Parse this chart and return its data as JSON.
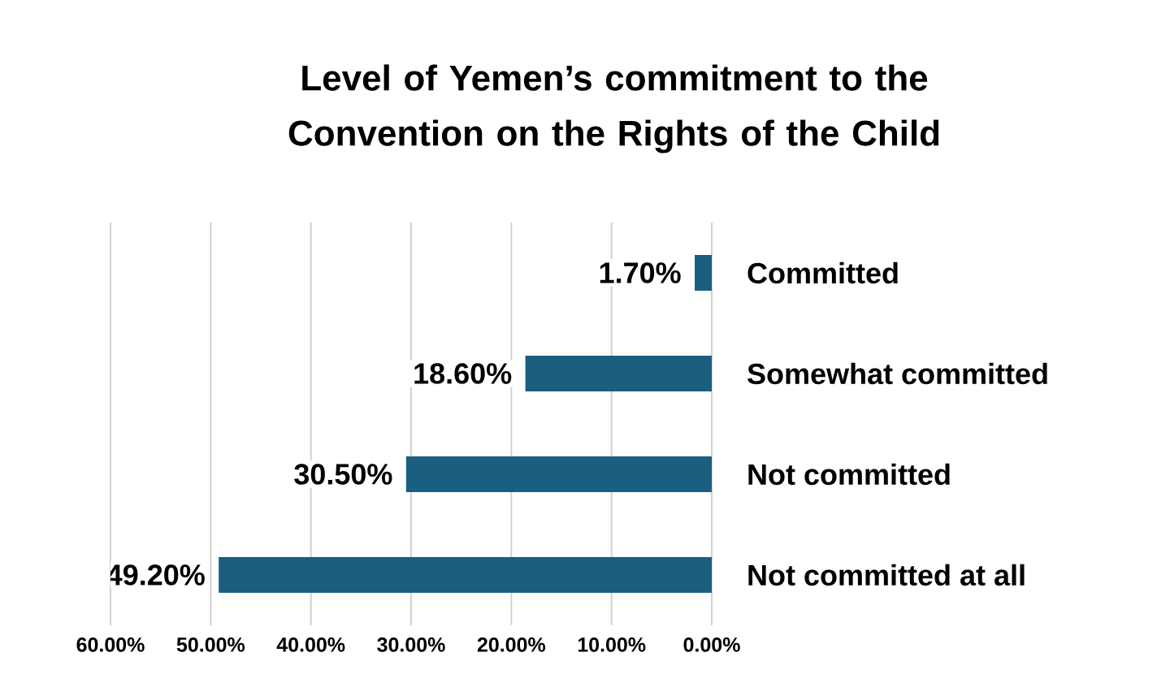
{
  "chart_data": {
    "type": "bar",
    "orientation": "horizontal",
    "title": "Level of Yemen’s commitment to the Convention on the Rights of the Child",
    "categories": [
      "Committed",
      "Somewhat committed",
      "Not committed",
      "Not committed at all"
    ],
    "values": [
      1.7,
      18.6,
      30.5,
      49.2
    ],
    "value_labels": [
      "1.70%",
      "18.60%",
      "30.50%",
      "49.20%"
    ],
    "color": "#1a5e80",
    "xlim": [
      60,
      0
    ],
    "xticks": [
      {
        "value": 60,
        "label": "60.00%"
      },
      {
        "value": 50,
        "label": "50.00%"
      },
      {
        "value": 40,
        "label": "40.00%"
      },
      {
        "value": 30,
        "label": "30.00%"
      },
      {
        "value": 20,
        "label": "20.00%"
      },
      {
        "value": 10,
        "label": "10.00%"
      },
      {
        "value": 0,
        "label": "0.00%"
      }
    ],
    "grid": "x"
  }
}
